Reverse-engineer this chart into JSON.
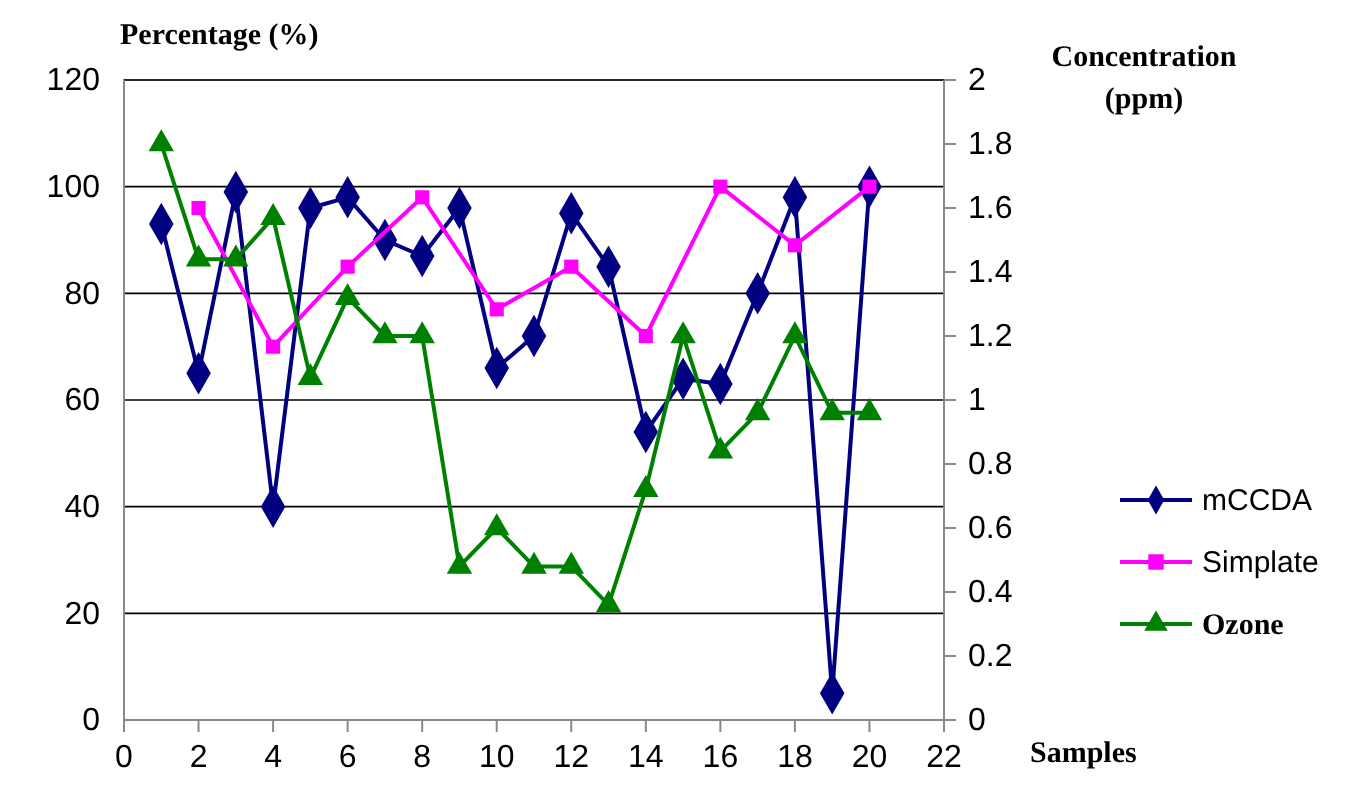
{
  "chart_data": {
    "type": "line",
    "xlabel": "Samples",
    "ylabel": "Percentage (%)",
    "y2label": "Concentration (ppm)",
    "xlim": [
      0,
      22
    ],
    "xticks": [
      0,
      2,
      4,
      6,
      8,
      10,
      12,
      14,
      16,
      18,
      20,
      22
    ],
    "ylim": [
      0,
      120
    ],
    "yticks": [
      0,
      20,
      40,
      60,
      80,
      100,
      120
    ],
    "y2lim": [
      0,
      2
    ],
    "y2ticks": [
      0,
      0.2,
      0.4,
      0.6,
      0.8,
      1,
      1.2,
      1.4,
      1.6,
      1.8,
      2
    ],
    "grid": "y",
    "legend": "right",
    "line_style": "solid",
    "series": [
      {
        "name": "mCCDA",
        "color": "#000080",
        "marker": "diamond",
        "x": [
          1,
          2,
          3,
          4,
          5,
          6,
          7,
          8,
          9,
          10,
          11,
          12,
          13,
          14,
          15,
          16,
          17,
          18,
          19,
          20
        ],
        "values": [
          93,
          65,
          99,
          40,
          96,
          98,
          90,
          87,
          96,
          66,
          72,
          95,
          85,
          54,
          64,
          63,
          80,
          98,
          5,
          100
        ]
      },
      {
        "name": "Simplate",
        "color": "#ff00ff",
        "marker": "square",
        "x": [
          2,
          4,
          6,
          8,
          10,
          12,
          14,
          16,
          18,
          20
        ],
        "values": [
          96,
          70,
          85,
          98,
          77,
          85,
          72,
          100,
          89,
          100
        ]
      },
      {
        "name": "Ozone",
        "color": "#008000",
        "marker": "triangle",
        "axis": "y2",
        "x": [
          1,
          2,
          3,
          4,
          5,
          6,
          7,
          8,
          9,
          10,
          11,
          12,
          13,
          14,
          15,
          16,
          17,
          18,
          19,
          20
        ],
        "values": [
          1.8,
          1.44,
          1.44,
          1.57,
          1.07,
          1.32,
          1.2,
          1.2,
          0.48,
          0.6,
          0.48,
          0.48,
          0.36,
          0.72,
          1.2,
          0.84,
          0.96,
          1.2,
          0.96,
          0.96
        ]
      }
    ]
  }
}
